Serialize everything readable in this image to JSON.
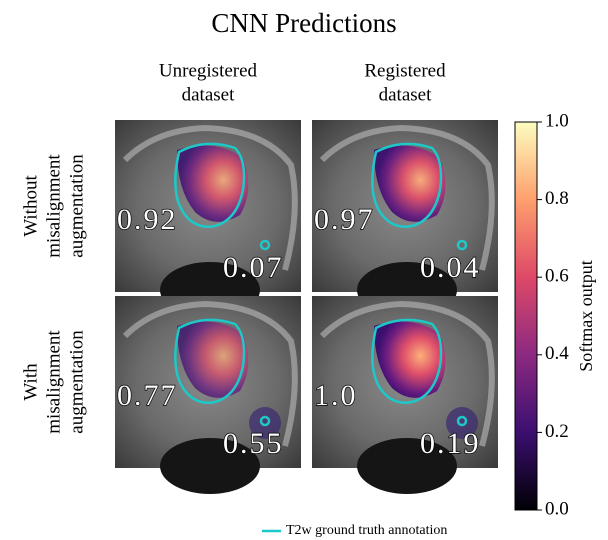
{
  "title": "CNN Predictions",
  "columns": [
    [
      "Unregistered",
      "dataset"
    ],
    [
      "Registered",
      "dataset"
    ]
  ],
  "rows": [
    [
      "Without",
      "misalignment",
      "augmentation"
    ],
    [
      "With",
      "misalignment",
      "augmentation"
    ]
  ],
  "panels": [
    [
      {
        "lesion": "0.92",
        "other": "0.07"
      },
      {
        "lesion": "0.97",
        "other": "0.04"
      }
    ],
    [
      {
        "lesion": "0.77",
        "other": "0.55"
      },
      {
        "lesion": "1.0",
        "other": "0.19"
      }
    ]
  ],
  "colorbar": {
    "label": "Softmax output",
    "range": [
      0,
      1
    ],
    "ticks": [
      {
        "value": 0,
        "label": "0.0"
      },
      {
        "value": 0.2,
        "label": "0.2"
      },
      {
        "value": 0.4,
        "label": "0.4"
      },
      {
        "value": 0.6,
        "label": "0.6"
      },
      {
        "value": 0.8,
        "label": "0.8"
      },
      {
        "value": 1,
        "label": "1.0"
      }
    ]
  },
  "legend": "T2w ground truth annotation"
}
